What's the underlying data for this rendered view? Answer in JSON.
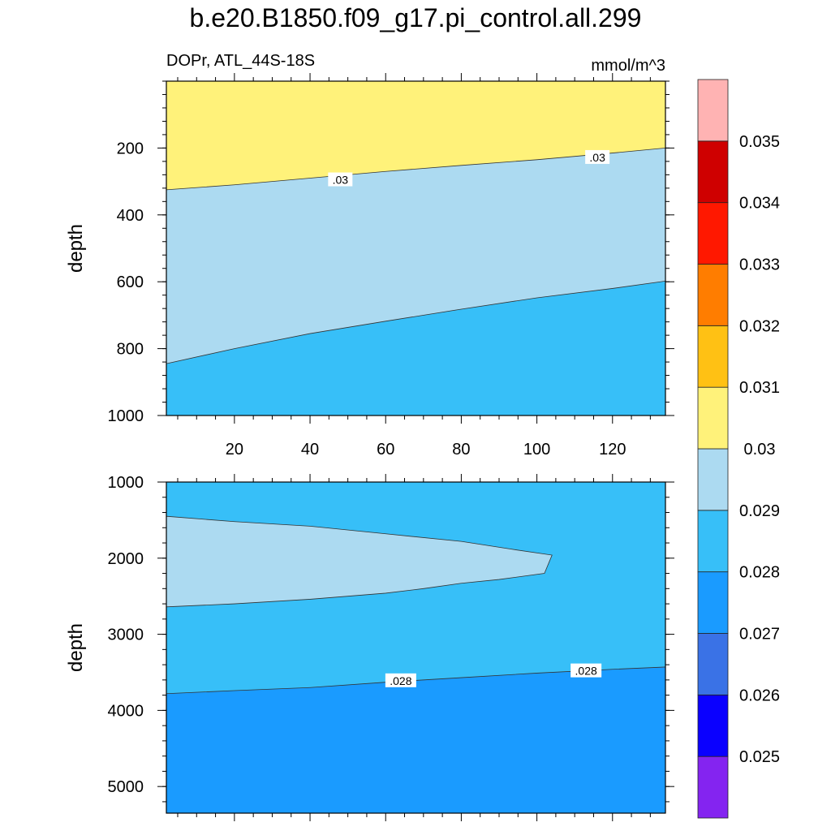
{
  "title": "b.e20.B1850.f09_g17.pi_control.all.299",
  "chart_data": [
    {
      "type": "contour",
      "subtitle_left": "DOPr, ATL_44S-18S",
      "subtitle_right": "mmol/m^3",
      "ylabel": "depth",
      "xlim": [
        2,
        134
      ],
      "ylim": [
        1000,
        0
      ],
      "xticks": [
        20,
        40,
        60,
        80,
        100,
        120
      ],
      "yticks": [
        200,
        400,
        600,
        800,
        1000
      ],
      "regions": [
        {
          "band": "0.03-0.031",
          "color": "#fff27a"
        },
        {
          "band": "0.029-0.03",
          "color": "#acdaf1"
        },
        {
          "band": "0.028-0.029",
          "color": "#37bff8"
        }
      ],
      "contours": [
        {
          "level": 0.03,
          "points": [
            [
              2,
              325
            ],
            [
              20,
              310
            ],
            [
              40,
              290
            ],
            [
              60,
              270
            ],
            [
              80,
              252
            ],
            [
              100,
              235
            ],
            [
              120,
              215
            ],
            [
              134,
              200
            ]
          ]
        },
        {
          "level": 0.029,
          "points": [
            [
              2,
              845
            ],
            [
              20,
              800
            ],
            [
              40,
              755
            ],
            [
              60,
              718
            ],
            [
              80,
              682
            ],
            [
              100,
              648
            ],
            [
              120,
              620
            ],
            [
              134,
              598
            ]
          ]
        }
      ],
      "contour_labels": [
        {
          "text": ".03",
          "x": 48,
          "y": 295
        },
        {
          "text": ".03",
          "x": 116,
          "y": 228
        }
      ]
    },
    {
      "type": "contour",
      "ylabel": "depth",
      "xlim": [
        2,
        134
      ],
      "ylim": [
        5350,
        1000
      ],
      "yticks": [
        1000,
        2000,
        3000,
        4000,
        5000
      ],
      "regions": [
        {
          "band": "0.028-0.029",
          "color": "#37bff8"
        },
        {
          "band": "0.029-0.03",
          "color": "#acdaf1"
        },
        {
          "band": "0.027-0.028",
          "color": "#1a9bff"
        }
      ],
      "contours": [
        {
          "level": 0.029,
          "closed": true,
          "points": [
            [
              2,
              1450
            ],
            [
              20,
              1520
            ],
            [
              40,
              1580
            ],
            [
              60,
              1680
            ],
            [
              80,
              1780
            ],
            [
              93,
              1880
            ],
            [
              104,
              1960
            ],
            [
              102,
              2200
            ],
            [
              90,
              2280
            ],
            [
              80,
              2330
            ],
            [
              70,
              2400
            ],
            [
              60,
              2460
            ],
            [
              40,
              2540
            ],
            [
              20,
              2600
            ],
            [
              2,
              2640
            ]
          ]
        },
        {
          "level": 0.028,
          "points": [
            [
              2,
              3780
            ],
            [
              20,
              3740
            ],
            [
              40,
              3700
            ],
            [
              60,
              3630
            ],
            [
              80,
              3570
            ],
            [
              100,
              3510
            ],
            [
              120,
              3460
            ],
            [
              134,
              3430
            ]
          ]
        }
      ],
      "contour_labels": [
        {
          "text": ".028",
          "x": 64,
          "y": 3610
        },
        {
          "text": ".028",
          "x": 113,
          "y": 3480
        }
      ]
    }
  ],
  "colorbar": {
    "colors": [
      "#8424f0",
      "#0a00ff",
      "#3a72e6",
      "#1a9bff",
      "#37bff8",
      "#acdaf1",
      "#fff27a",
      "#ffc114",
      "#ff7d00",
      "#ff1800",
      "#cf0000",
      "#ffb3b3"
    ],
    "labels": [
      "0.025",
      "0.026",
      "0.027",
      "0.028",
      "0.029",
      "0.03",
      "0.031",
      "0.032",
      "0.033",
      "0.034",
      "0.035"
    ]
  }
}
